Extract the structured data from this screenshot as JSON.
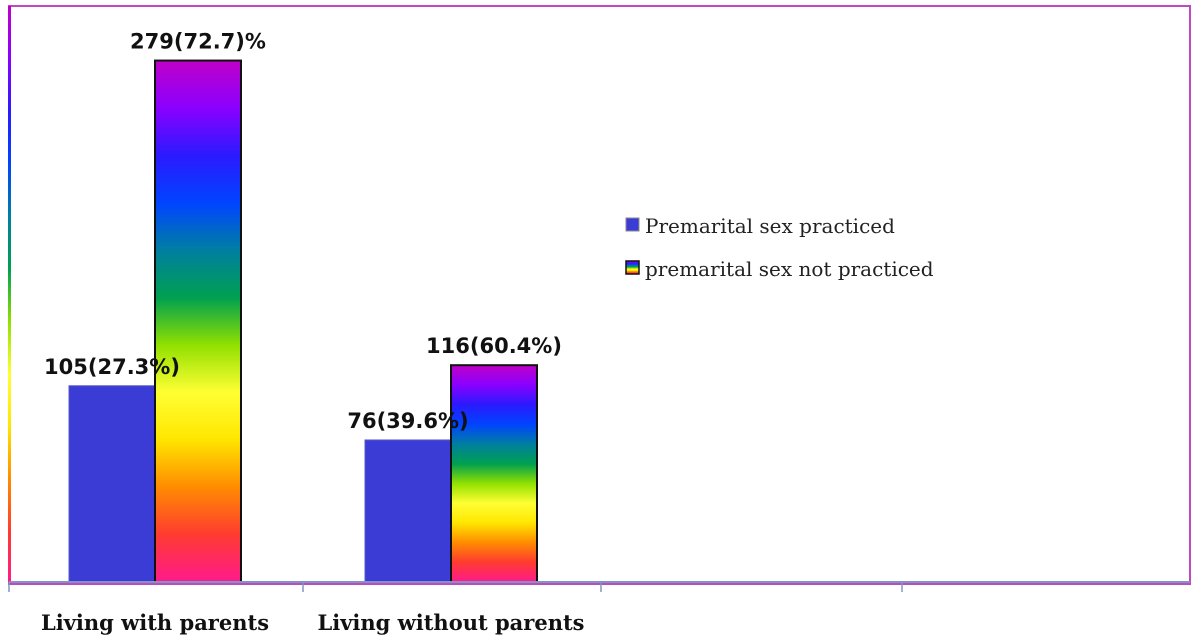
{
  "chart_data": {
    "type": "bar",
    "categories": [
      "Living with parents",
      "Living without parents"
    ],
    "series": [
      {
        "name": "Premarital sex practiced",
        "values": [
          105,
          76
        ],
        "labels": [
          "105(27.3%)",
          "76(39.6%)"
        ],
        "color": "#3b3bd6"
      },
      {
        "name": "premarital sex not practiced",
        "values": [
          279,
          116
        ],
        "labels": [
          "279(72.7)%",
          "116(60.4%)"
        ],
        "gradient": [
          "#ff1a8c",
          "#ff3b30",
          "#ff8c00",
          "#ffe600",
          "#ffff33",
          "#90e000",
          "#00a050",
          "#007fa0",
          "#0044ff",
          "#2a1aff",
          "#8a00ff",
          "#c000c8"
        ]
      }
    ],
    "ylim": [
      0,
      290
    ],
    "grid": false,
    "legend": "right",
    "frame_color": "#c048c0",
    "axis_color": "#7f96c2"
  }
}
